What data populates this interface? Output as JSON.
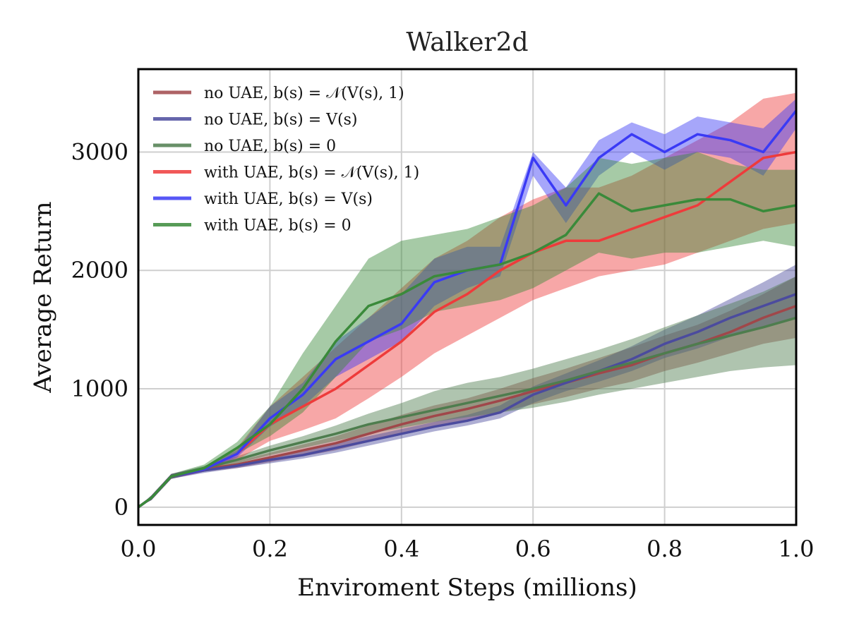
{
  "chart_data": {
    "type": "line",
    "title": "Walker2d",
    "xlabel": "Enviroment Steps (millions)",
    "ylabel": "Average Return",
    "xlim": [
      0.0,
      1.0
    ],
    "ylim": [
      -150,
      3700
    ],
    "xticks": [
      0.0,
      0.2,
      0.4,
      0.6,
      0.8,
      1.0
    ],
    "xtick_labels": [
      "0.0",
      "0.2",
      "0.4",
      "0.6",
      "0.8",
      "1.0"
    ],
    "yticks": [
      0,
      1000,
      2000,
      3000
    ],
    "ytick_labels": [
      "0",
      "1000",
      "2000",
      "3000"
    ],
    "grid": true,
    "legend_position": "top-left",
    "series": [
      {
        "name": "no UAE, b(s) = N(V(s), 1)",
        "legend_label": "no UAE, b(s) = 𝒩(V(s), 1)",
        "color": "#a0474a",
        "x": [
          0.0,
          0.02,
          0.05,
          0.1,
          0.15,
          0.2,
          0.25,
          0.3,
          0.35,
          0.4,
          0.45,
          0.5,
          0.55,
          0.6,
          0.65,
          0.7,
          0.75,
          0.8,
          0.85,
          0.9,
          0.95,
          1.0
        ],
        "y": [
          0,
          80,
          260,
          320,
          360,
          420,
          480,
          540,
          620,
          700,
          770,
          830,
          900,
          980,
          1050,
          1130,
          1200,
          1300,
          1380,
          1480,
          1600,
          1700
        ],
        "lower": [
          0,
          60,
          240,
          300,
          330,
          380,
          430,
          480,
          550,
          620,
          680,
          740,
          800,
          870,
          930,
          1000,
          1060,
          1150,
          1220,
          1300,
          1380,
          1430
        ],
        "upper": [
          0,
          100,
          280,
          340,
          390,
          460,
          530,
          600,
          690,
          780,
          860,
          920,
          1000,
          1090,
          1170,
          1260,
          1350,
          1450,
          1540,
          1660,
          1800,
          1950
        ]
      },
      {
        "name": "no UAE, b(s) = V(s)",
        "legend_label": "no UAE, b(s) = V(s)",
        "color": "#4b4b9e",
        "x": [
          0.0,
          0.02,
          0.05,
          0.1,
          0.15,
          0.2,
          0.25,
          0.3,
          0.35,
          0.4,
          0.45,
          0.5,
          0.55,
          0.6,
          0.65,
          0.7,
          0.75,
          0.8,
          0.85,
          0.9,
          0.95,
          1.0
        ],
        "y": [
          0,
          80,
          260,
          310,
          350,
          400,
          440,
          500,
          560,
          620,
          680,
          730,
          800,
          950,
          1050,
          1150,
          1250,
          1380,
          1480,
          1600,
          1700,
          1800
        ],
        "lower": [
          0,
          60,
          240,
          290,
          330,
          370,
          410,
          460,
          520,
          580,
          640,
          690,
          750,
          880,
          980,
          1060,
          1150,
          1260,
          1340,
          1440,
          1520,
          1600
        ],
        "upper": [
          0,
          100,
          280,
          330,
          370,
          430,
          470,
          540,
          600,
          660,
          720,
          780,
          860,
          1020,
          1130,
          1240,
          1360,
          1500,
          1620,
          1760,
          1900,
          2050
        ]
      },
      {
        "name": "no UAE, b(s) = 0",
        "legend_label": "no UAE, b(s) = 0",
        "color": "#4e7d4e",
        "x": [
          0.0,
          0.02,
          0.05,
          0.1,
          0.15,
          0.2,
          0.25,
          0.3,
          0.35,
          0.4,
          0.45,
          0.5,
          0.55,
          0.6,
          0.65,
          0.7,
          0.75,
          0.8,
          0.85,
          0.9,
          0.95,
          1.0
        ],
        "y": [
          0,
          80,
          260,
          330,
          400,
          480,
          550,
          620,
          700,
          760,
          820,
          880,
          940,
          1000,
          1070,
          1150,
          1220,
          1300,
          1380,
          1450,
          1520,
          1600
        ],
        "lower": [
          0,
          60,
          240,
          310,
          370,
          440,
          500,
          560,
          620,
          670,
          720,
          760,
          800,
          840,
          890,
          950,
          1000,
          1050,
          1100,
          1150,
          1180,
          1200
        ],
        "upper": [
          0,
          100,
          280,
          350,
          430,
          520,
          600,
          690,
          790,
          880,
          980,
          1050,
          1100,
          1170,
          1250,
          1330,
          1420,
          1520,
          1620,
          1720,
          1820,
          1950
        ]
      },
      {
        "name": "with UAE, b(s) = N(V(s), 1)",
        "legend_label": "with UAE, b(s) = 𝒩(V(s), 1)",
        "color": "#ee3b3b",
        "x": [
          0.0,
          0.02,
          0.05,
          0.1,
          0.15,
          0.2,
          0.25,
          0.3,
          0.35,
          0.4,
          0.45,
          0.5,
          0.55,
          0.6,
          0.65,
          0.7,
          0.75,
          0.8,
          0.85,
          0.9,
          0.95,
          1.0
        ],
        "y": [
          0,
          80,
          260,
          320,
          450,
          700,
          850,
          1000,
          1200,
          1400,
          1650,
          1800,
          2000,
          2150,
          2250,
          2250,
          2350,
          2450,
          2550,
          2750,
          2950,
          3000
        ],
        "lower": [
          0,
          60,
          240,
          300,
          400,
          560,
          650,
          750,
          920,
          1100,
          1300,
          1450,
          1600,
          1750,
          1850,
          1950,
          2000,
          2050,
          2150,
          2250,
          2350,
          2400
        ],
        "upper": [
          0,
          100,
          280,
          340,
          500,
          850,
          1100,
          1350,
          1600,
          1850,
          2100,
          2250,
          2450,
          2600,
          2700,
          2700,
          2800,
          2950,
          3100,
          3250,
          3450,
          3500
        ]
      },
      {
        "name": "with UAE, b(s) = V(s)",
        "legend_label": "with UAE, b(s) = V(s)",
        "color": "#3a3af5",
        "x": [
          0.0,
          0.02,
          0.05,
          0.1,
          0.15,
          0.2,
          0.25,
          0.3,
          0.35,
          0.4,
          0.45,
          0.5,
          0.55,
          0.6,
          0.65,
          0.7,
          0.75,
          0.8,
          0.85,
          0.9,
          0.95,
          1.0
        ],
        "y": [
          0,
          80,
          260,
          320,
          450,
          750,
          950,
          1250,
          1400,
          1550,
          1900,
          2000,
          2050,
          2950,
          2550,
          2950,
          3150,
          3000,
          3150,
          3100,
          3000,
          3350
        ],
        "lower": [
          0,
          60,
          240,
          300,
          420,
          680,
          850,
          1100,
          1250,
          1400,
          1700,
          1850,
          1950,
          2800,
          2400,
          2800,
          3000,
          2850,
          3000,
          2950,
          2800,
          3200
        ],
        "upper": [
          0,
          100,
          280,
          340,
          480,
          850,
          1050,
          1400,
          1600,
          1800,
          2100,
          2200,
          2200,
          3000,
          2700,
          3100,
          3250,
          3150,
          3300,
          3250,
          3200,
          3450
        ]
      },
      {
        "name": "with UAE, b(s) = 0",
        "legend_label": "with UAE, b(s) = 0",
        "color": "#3a8a3a",
        "x": [
          0.0,
          0.02,
          0.05,
          0.1,
          0.15,
          0.2,
          0.25,
          0.3,
          0.35,
          0.4,
          0.45,
          0.5,
          0.55,
          0.6,
          0.65,
          0.7,
          0.75,
          0.8,
          0.85,
          0.9,
          0.95,
          1.0
        ],
        "y": [
          0,
          80,
          260,
          330,
          500,
          700,
          1000,
          1400,
          1700,
          1800,
          1950,
          2000,
          2050,
          2150,
          2300,
          2650,
          2500,
          2550,
          2600,
          2600,
          2500,
          2550
        ],
        "lower": [
          0,
          60,
          240,
          310,
          450,
          600,
          800,
          1100,
          1400,
          1500,
          1650,
          1700,
          1750,
          1850,
          2000,
          2150,
          2100,
          2150,
          2150,
          2200,
          2250,
          2200
        ],
        "upper": [
          0,
          100,
          280,
          360,
          550,
          850,
          1300,
          1700,
          2100,
          2250,
          2300,
          2350,
          2450,
          2550,
          2700,
          2950,
          2900,
          2950,
          3000,
          2900,
          2850,
          2850
        ]
      }
    ]
  }
}
